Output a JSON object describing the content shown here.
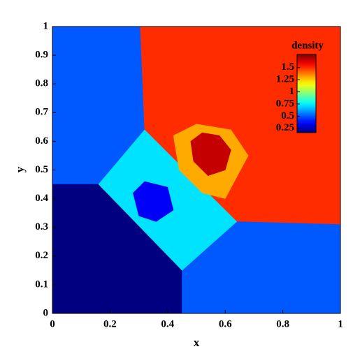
{
  "chart_data": {
    "type": "contour",
    "xlabel": "x",
    "ylabel": "y",
    "xlim": [
      0,
      1
    ],
    "ylim": [
      0,
      1
    ],
    "xticks": [
      0,
      0.2,
      0.4,
      0.6,
      0.8,
      1
    ],
    "yticks": [
      0,
      0.1,
      0.2,
      0.3,
      0.4,
      0.5,
      0.6,
      0.7,
      0.8,
      0.9,
      1
    ],
    "colorbar_title": "density",
    "clim": [
      0.16,
      1.77
    ],
    "cticks": [
      0.25,
      0.5,
      0.75,
      1,
      1.25,
      1.5
    ],
    "colormap": "jet",
    "regions": [
      {
        "density": 0.5,
        "x": [
          0,
          0,
          0.16,
          0.32,
          0.305
        ],
        "y": [
          1,
          0.45,
          0.45,
          0.64,
          1
        ]
      },
      {
        "density": 1.5,
        "x": [
          0.305,
          1,
          1,
          0.64,
          0.32
        ],
        "y": [
          1,
          1,
          0.31,
          0.32,
          0.64
        ]
      },
      {
        "density": 0.14,
        "x": [
          0,
          0.45,
          0.45,
          0.16,
          0
        ],
        "y": [
          0,
          0,
          0.15,
          0.45,
          0.45
        ]
      },
      {
        "density": 0.5,
        "x": [
          0.45,
          1,
          1,
          0.64,
          0.45
        ],
        "y": [
          0,
          0,
          0.31,
          0.32,
          0.15
        ]
      },
      {
        "density": 0.72,
        "x": [
          0.16,
          0.32,
          0.64,
          0.45
        ],
        "y": [
          0.45,
          0.64,
          0.32,
          0.15
        ]
      },
      {
        "density": 1.3,
        "x": [
          0.42,
          0.5,
          0.62,
          0.68,
          0.6,
          0.52,
          0.44
        ],
        "y": [
          0.62,
          0.66,
          0.64,
          0.55,
          0.4,
          0.42,
          0.5
        ]
      },
      {
        "density": 1.66,
        "x": [
          0.48,
          0.52,
          0.58,
          0.62,
          0.6,
          0.54,
          0.49
        ],
        "y": [
          0.6,
          0.63,
          0.62,
          0.57,
          0.5,
          0.48,
          0.53
        ]
      },
      {
        "density": 0.35,
        "x": [
          0.28,
          0.32,
          0.4,
          0.42,
          0.36,
          0.3
        ],
        "y": [
          0.42,
          0.46,
          0.44,
          0.36,
          0.32,
          0.34
        ]
      }
    ]
  }
}
